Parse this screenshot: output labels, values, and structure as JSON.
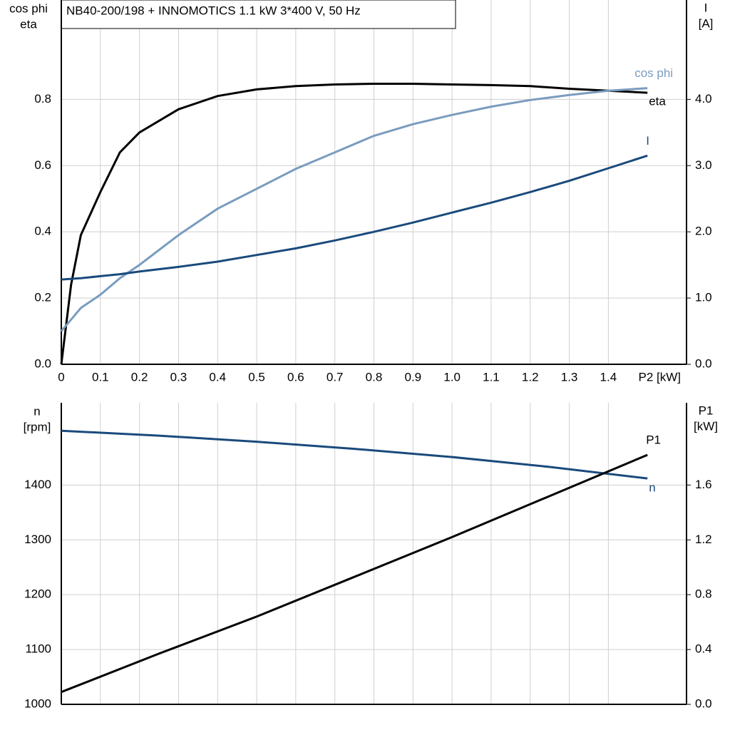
{
  "chart_data": [
    {
      "type": "line",
      "title": "NB40-200/198 + INNOMOTICS   1.1 kW   3*400 V, 50 Hz",
      "xlabel": "P2 [kW]",
      "ylabel": [
        "cos phi",
        "eta"
      ],
      "y2label": [
        "I",
        "[A]"
      ],
      "xlim": [
        0,
        1.6
      ],
      "xticks": [
        0,
        0.1,
        0.2,
        0.3,
        0.4,
        0.5,
        0.6,
        0.7,
        0.8,
        0.9,
        {
          "value": 1,
          "label": "1.0"
        },
        1.1,
        1.2,
        1.3,
        1.4
      ],
      "ylim": [
        0,
        1.1
      ],
      "yticks": [
        {
          "value": 0,
          "label": "0.0"
        },
        0.2,
        0.4,
        0.6,
        0.8
      ],
      "y2lim": [
        0,
        5.5
      ],
      "y2ticks": [
        {
          "value": 0,
          "label": "0.0"
        },
        {
          "value": 1,
          "label": "1.0"
        },
        {
          "value": 2,
          "label": "2.0"
        },
        {
          "value": 3,
          "label": "3.0"
        },
        {
          "value": 4,
          "label": "4.0"
        }
      ],
      "grid": true,
      "x": [
        0,
        0.025,
        0.05,
        0.1,
        0.15,
        0.2,
        0.3,
        0.4,
        0.5,
        0.6,
        0.7,
        0.8,
        0.9,
        1.0,
        1.1,
        1.2,
        1.3,
        1.4,
        1.5
      ],
      "series": [
        {
          "name": "eta",
          "color": "#000000",
          "values": [
            0,
            0.24,
            0.39,
            0.52,
            0.64,
            0.7,
            0.77,
            0.81,
            0.83,
            0.84,
            0.845,
            0.847,
            0.847,
            0.845,
            0.843,
            0.84,
            0.832,
            0.826,
            0.82
          ]
        },
        {
          "name": "cos phi",
          "color": "#7a9cbf",
          "values": [
            0.1,
            0.135,
            0.17,
            0.21,
            0.26,
            0.3,
            0.39,
            0.47,
            0.53,
            0.59,
            0.64,
            0.69,
            0.725,
            0.753,
            0.778,
            0.798,
            0.813,
            0.826,
            0.834
          ]
        },
        {
          "name": "I",
          "color": "#1a4a7c",
          "axis": "y2",
          "values": [
            1.28,
            1.29,
            1.3,
            1.33,
            1.36,
            1.4,
            1.47,
            1.55,
            1.65,
            1.75,
            1.87,
            2.0,
            2.14,
            2.29,
            2.44,
            2.6,
            2.77,
            2.96,
            3.15
          ]
        }
      ]
    },
    {
      "type": "line",
      "ylabel": [
        "n",
        "[rpm]"
      ],
      "y2label": [
        "P1",
        "[kW]"
      ],
      "ylim": [
        1000,
        1550
      ],
      "yticks": [
        1000,
        1100,
        1200,
        1300,
        1400
      ],
      "y2lim": [
        0,
        2.2
      ],
      "y2ticks": [
        {
          "value": 0,
          "label": "0.0"
        },
        0.4,
        0.8,
        1.2,
        1.6
      ],
      "grid": true,
      "x": [
        0,
        0.25,
        0.5,
        0.75,
        1.0,
        1.25,
        1.5
      ],
      "series": [
        {
          "name": "n",
          "color": "#1a4a7c",
          "values": [
            1499,
            1490,
            1479,
            1466,
            1451,
            1433,
            1412
          ]
        },
        {
          "name": "P1",
          "color": "#000000",
          "axis": "y2",
          "values": [
            0.09,
            0.37,
            0.64,
            0.93,
            1.22,
            1.52,
            1.82
          ]
        }
      ]
    }
  ]
}
